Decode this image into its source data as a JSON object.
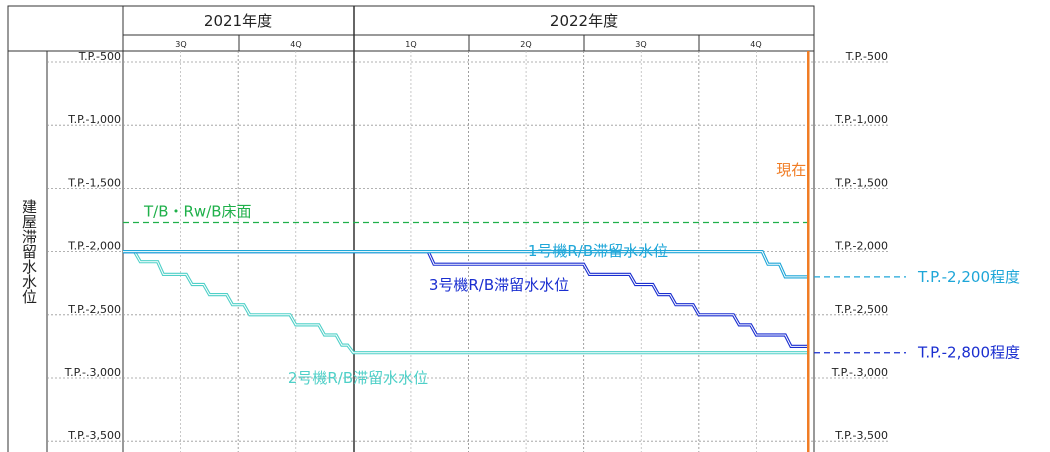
{
  "chart_data": {
    "type": "line",
    "header": {
      "years": [
        {
          "label": "2021年度",
          "quarters": [
            "3Q",
            "4Q"
          ]
        },
        {
          "label": "2022年度",
          "quarters": [
            "1Q",
            "2Q",
            "3Q",
            "4Q"
          ]
        }
      ]
    },
    "ylabel": "建屋滞留水水位",
    "ylim": [
      -3500,
      -500
    ],
    "yticks": [
      {
        "value": -500,
        "label": "T.P.-500"
      },
      {
        "value": -1000,
        "label": "T.P.-1,000"
      },
      {
        "value": -1500,
        "label": "T.P.-1,500"
      },
      {
        "value": -2000,
        "label": "T.P.-2,000"
      },
      {
        "value": -2500,
        "label": "T.P.-2,500"
      },
      {
        "value": -3000,
        "label": "T.P.-.3,000"
      },
      {
        "value": -3500,
        "label": "T.P.-3,500"
      }
    ],
    "x_unit": "quarter index (0 = start of 2021 3Q, 6 = end of 2022 4Q)",
    "xlim": [
      0,
      6
    ],
    "now": {
      "x": 5.95,
      "label": "現在",
      "color": "#f07c24"
    },
    "floor": {
      "value": -1770,
      "label": "T/B・Rw/B床面",
      "color": "#1fb04a"
    },
    "series": [
      {
        "name": "1号機R/B滞留水水位",
        "color": "#1ea6d8",
        "points": [
          [
            0,
            -2000
          ],
          [
            5.55,
            -2000
          ],
          [
            5.6,
            -2100
          ],
          [
            5.7,
            -2100
          ],
          [
            5.75,
            -2200
          ],
          [
            5.95,
            -2200
          ]
        ]
      },
      {
        "name": "3号機R/B滞留水水位",
        "color": "#1a2ed0",
        "points": [
          [
            0,
            -2000
          ],
          [
            2.65,
            -2000
          ],
          [
            2.7,
            -2100
          ],
          [
            4.0,
            -2100
          ],
          [
            4.05,
            -2180
          ],
          [
            4.4,
            -2180
          ],
          [
            4.45,
            -2260
          ],
          [
            4.6,
            -2260
          ],
          [
            4.65,
            -2340
          ],
          [
            4.75,
            -2340
          ],
          [
            4.8,
            -2420
          ],
          [
            4.95,
            -2420
          ],
          [
            5.0,
            -2500
          ],
          [
            5.3,
            -2500
          ],
          [
            5.35,
            -2580
          ],
          [
            5.45,
            -2580
          ],
          [
            5.5,
            -2660
          ],
          [
            5.75,
            -2660
          ],
          [
            5.8,
            -2750
          ],
          [
            5.95,
            -2750
          ]
        ]
      },
      {
        "name": "2号機R/B滞留水水位",
        "color": "#4fd0c8",
        "points": [
          [
            0,
            -2000
          ],
          [
            0.1,
            -2000
          ],
          [
            0.15,
            -2080
          ],
          [
            0.3,
            -2080
          ],
          [
            0.35,
            -2180
          ],
          [
            0.55,
            -2180
          ],
          [
            0.6,
            -2260
          ],
          [
            0.7,
            -2260
          ],
          [
            0.75,
            -2340
          ],
          [
            0.9,
            -2340
          ],
          [
            0.95,
            -2420
          ],
          [
            1.05,
            -2420
          ],
          [
            1.1,
            -2500
          ],
          [
            1.45,
            -2500
          ],
          [
            1.5,
            -2580
          ],
          [
            1.7,
            -2580
          ],
          [
            1.75,
            -2660
          ],
          [
            1.85,
            -2660
          ],
          [
            1.9,
            -2740
          ],
          [
            1.95,
            -2740
          ],
          [
            2.0,
            -2800
          ],
          [
            5.95,
            -2800
          ]
        ]
      }
    ],
    "callouts": [
      {
        "label": "T.P.-2,200程度",
        "value": -2200,
        "color": "#1ea6d8"
      },
      {
        "label": "T.P.-2,800程度",
        "value": -2800,
        "color": "#1a2ed0"
      }
    ]
  }
}
